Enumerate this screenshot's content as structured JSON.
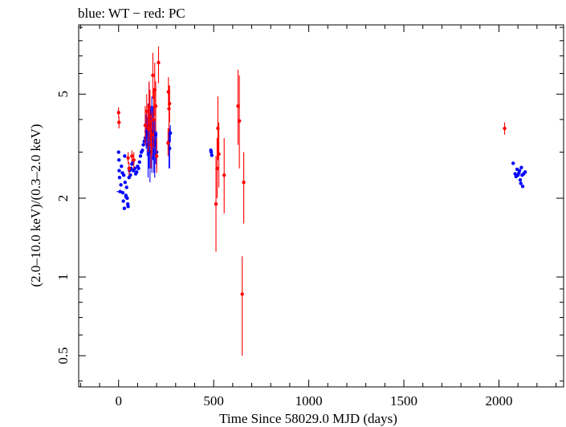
{
  "chart_data": {
    "type": "scatter",
    "title": "blue: WT − red: PC",
    "xlabel": "Time Since 58029.0 MJD (days)",
    "ylabel": "(2.0–10.0 keV)/(0.3–2.0 keV)",
    "xlim": [
      -210,
      2340
    ],
    "ylim": [
      0.38,
      9.2
    ],
    "yscale": "log",
    "xticks": [
      0,
      500,
      1000,
      1500,
      2000
    ],
    "xtick_labels": [
      "0",
      "500",
      "1000",
      "1500",
      "2000"
    ],
    "yticks": [
      0.5,
      1,
      2,
      5
    ],
    "ytick_labels": [
      "0.5",
      "1",
      "2",
      "5"
    ],
    "grid": false,
    "series": [
      {
        "name": "WT",
        "color": "#0000ff",
        "points": [
          {
            "x": 0,
            "y": 3.0
          },
          {
            "x": 2,
            "y": 2.8
          },
          {
            "x": 3,
            "y": 2.55
          },
          {
            "x": 5,
            "y": 2.4
          },
          {
            "x": 8,
            "y": 2.12,
            "xerr": 18
          },
          {
            "x": 12,
            "y": 2.25
          },
          {
            "x": 15,
            "y": 2.65
          },
          {
            "x": 20,
            "y": 2.5
          },
          {
            "x": 22,
            "y": 2.1
          },
          {
            "x": 25,
            "y": 1.95
          },
          {
            "x": 27,
            "y": 2.45
          },
          {
            "x": 30,
            "y": 1.83
          },
          {
            "x": 32,
            "y": 2.9
          },
          {
            "x": 34,
            "y": 2.3
          },
          {
            "x": 38,
            "y": 2.05
          },
          {
            "x": 40,
            "y": 2.02
          },
          {
            "x": 42,
            "y": 2.2
          },
          {
            "x": 45,
            "y": 2.0
          },
          {
            "x": 48,
            "y": 1.9
          },
          {
            "x": 50,
            "y": 1.86
          },
          {
            "x": 55,
            "y": 2.4
          },
          {
            "x": 58,
            "y": 2.55
          },
          {
            "x": 62,
            "y": 2.45
          },
          {
            "x": 65,
            "y": 2.6
          },
          {
            "x": 70,
            "y": 2.7
          },
          {
            "x": 75,
            "y": 2.75
          },
          {
            "x": 78,
            "y": 2.55
          },
          {
            "x": 85,
            "y": 2.6
          },
          {
            "x": 90,
            "y": 2.48
          },
          {
            "x": 95,
            "y": 2.52
          },
          {
            "x": 100,
            "y": 2.65
          },
          {
            "x": 105,
            "y": 2.6
          },
          {
            "x": 110,
            "y": 2.75
          },
          {
            "x": 115,
            "y": 2.9
          },
          {
            "x": 120,
            "y": 3.0
          },
          {
            "x": 125,
            "y": 3.05
          },
          {
            "x": 130,
            "y": 3.2
          },
          {
            "x": 135,
            "y": 3.3
          },
          {
            "x": 140,
            "y": 3.4
          },
          {
            "x": 145,
            "y": 3.6,
            "ylo": 3.1,
            "yhi": 4.2
          },
          {
            "x": 150,
            "y": 3.5,
            "ylo": 2.9,
            "yhi": 4.1
          },
          {
            "x": 155,
            "y": 3.2,
            "ylo": 2.4,
            "yhi": 4.6
          },
          {
            "x": 160,
            "y": 3.8,
            "ylo": 2.6,
            "yhi": 5.5
          },
          {
            "x": 165,
            "y": 3.0,
            "ylo": 2.3,
            "yhi": 4.4
          },
          {
            "x": 170,
            "y": 3.4,
            "ylo": 2.6,
            "yhi": 4.5
          },
          {
            "x": 175,
            "y": 3.5,
            "ylo": 2.5,
            "yhi": 4.9
          },
          {
            "x": 180,
            "y": 3.6,
            "ylo": 2.8,
            "yhi": 4.5
          },
          {
            "x": 185,
            "y": 3.3,
            "ylo": 2.5,
            "yhi": 4.3
          },
          {
            "x": 190,
            "y": 3.2,
            "ylo": 2.4,
            "yhi": 4.0
          },
          {
            "x": 195,
            "y": 3.5,
            "ylo": 2.7,
            "yhi": 4.4
          },
          {
            "x": 200,
            "y": 3.0,
            "ylo": 2.6,
            "yhi": 3.6
          },
          {
            "x": 265,
            "y": 3.3,
            "ylo": 2.6,
            "yhi": 4.1
          },
          {
            "x": 268,
            "y": 3.1,
            "ylo": 2.6,
            "yhi": 3.7
          },
          {
            "x": 272,
            "y": 3.55,
            "ylo": 3.3,
            "yhi": 3.8
          },
          {
            "x": 485,
            "y": 3.05
          },
          {
            "x": 487,
            "y": 3.0
          },
          {
            "x": 490,
            "y": 2.92
          },
          {
            "x": 2075,
            "y": 2.72
          },
          {
            "x": 2085,
            "y": 2.48
          },
          {
            "x": 2090,
            "y": 2.42
          },
          {
            "x": 2095,
            "y": 2.58
          },
          {
            "x": 2100,
            "y": 2.45
          },
          {
            "x": 2105,
            "y": 2.5
          },
          {
            "x": 2108,
            "y": 2.55
          },
          {
            "x": 2112,
            "y": 2.35
          },
          {
            "x": 2115,
            "y": 2.28
          },
          {
            "x": 2118,
            "y": 2.62
          },
          {
            "x": 2122,
            "y": 2.45
          },
          {
            "x": 2125,
            "y": 2.22
          },
          {
            "x": 2130,
            "y": 2.48
          },
          {
            "x": 2138,
            "y": 2.52
          }
        ]
      },
      {
        "name": "PC",
        "color": "#ff0000",
        "points": [
          {
            "x": 0,
            "y": 4.25,
            "ylo": 4.05,
            "yhi": 4.45
          },
          {
            "x": 2,
            "y": 3.9,
            "ylo": 3.7,
            "yhi": 4.1
          },
          {
            "x": 50,
            "y": 2.85,
            "ylo": 2.7,
            "yhi": 3.0
          },
          {
            "x": 55,
            "y": 2.6,
            "ylo": 2.45,
            "yhi": 2.75
          },
          {
            "x": 70,
            "y": 2.9,
            "ylo": 2.75,
            "yhi": 3.05
          },
          {
            "x": 80,
            "y": 2.8,
            "ylo": 2.6,
            "yhi": 3.0
          },
          {
            "x": 140,
            "y": 3.8,
            "ylo": 3.2,
            "yhi": 4.5
          },
          {
            "x": 148,
            "y": 4.3,
            "ylo": 3.7,
            "yhi": 5.0
          },
          {
            "x": 155,
            "y": 3.7,
            "ylo": 3.0,
            "yhi": 4.5
          },
          {
            "x": 160,
            "y": 4.5,
            "ylo": 3.6,
            "yhi": 5.6
          },
          {
            "x": 165,
            "y": 4.1,
            "ylo": 3.3,
            "yhi": 5.2
          },
          {
            "x": 170,
            "y": 3.2,
            "ylo": 2.6,
            "yhi": 4.0
          },
          {
            "x": 175,
            "y": 3.5,
            "ylo": 2.9,
            "yhi": 4.3
          },
          {
            "x": 180,
            "y": 5.9,
            "ylo": 4.8,
            "yhi": 7.2
          },
          {
            "x": 185,
            "y": 4.0,
            "ylo": 3.1,
            "yhi": 5.2
          },
          {
            "x": 190,
            "y": 5.2,
            "ylo": 4.1,
            "yhi": 6.6
          },
          {
            "x": 195,
            "y": 4.5,
            "ylo": 3.6,
            "yhi": 5.6
          },
          {
            "x": 200,
            "y": 2.9,
            "ylo": 2.5,
            "yhi": 3.4
          },
          {
            "x": 210,
            "y": 6.6,
            "ylo": 5.5,
            "yhi": 7.6
          },
          {
            "x": 260,
            "y": 3.25,
            "ylo": 2.9,
            "yhi": 3.7
          },
          {
            "x": 262,
            "y": 5.1,
            "ylo": 4.5,
            "yhi": 5.8
          },
          {
            "x": 265,
            "y": 4.4,
            "ylo": 3.6,
            "yhi": 5.4
          },
          {
            "x": 268,
            "y": 4.6,
            "ylo": 3.9,
            "yhi": 5.4
          },
          {
            "x": 512,
            "y": 1.9,
            "ylo": 1.25,
            "yhi": 2.9
          },
          {
            "x": 518,
            "y": 2.6,
            "ylo": 2.0,
            "yhi": 3.4
          },
          {
            "x": 522,
            "y": 3.7,
            "ylo": 2.8,
            "yhi": 4.9
          },
          {
            "x": 527,
            "y": 2.95,
            "ylo": 2.2,
            "yhi": 3.9
          },
          {
            "x": 555,
            "y": 2.45,
            "ylo": 1.75,
            "yhi": 3.4
          },
          {
            "x": 628,
            "y": 4.5,
            "ylo": 3.2,
            "yhi": 6.2
          },
          {
            "x": 635,
            "y": 3.95,
            "ylo": 2.6,
            "yhi": 5.9
          },
          {
            "x": 650,
            "y": 0.86,
            "ylo": 0.5,
            "yhi": 1.2
          },
          {
            "x": 658,
            "y": 2.3,
            "ylo": 1.6,
            "yhi": 3.0
          },
          {
            "x": 2030,
            "y": 3.7,
            "ylo": 3.5,
            "yhi": 3.9
          }
        ]
      }
    ]
  }
}
